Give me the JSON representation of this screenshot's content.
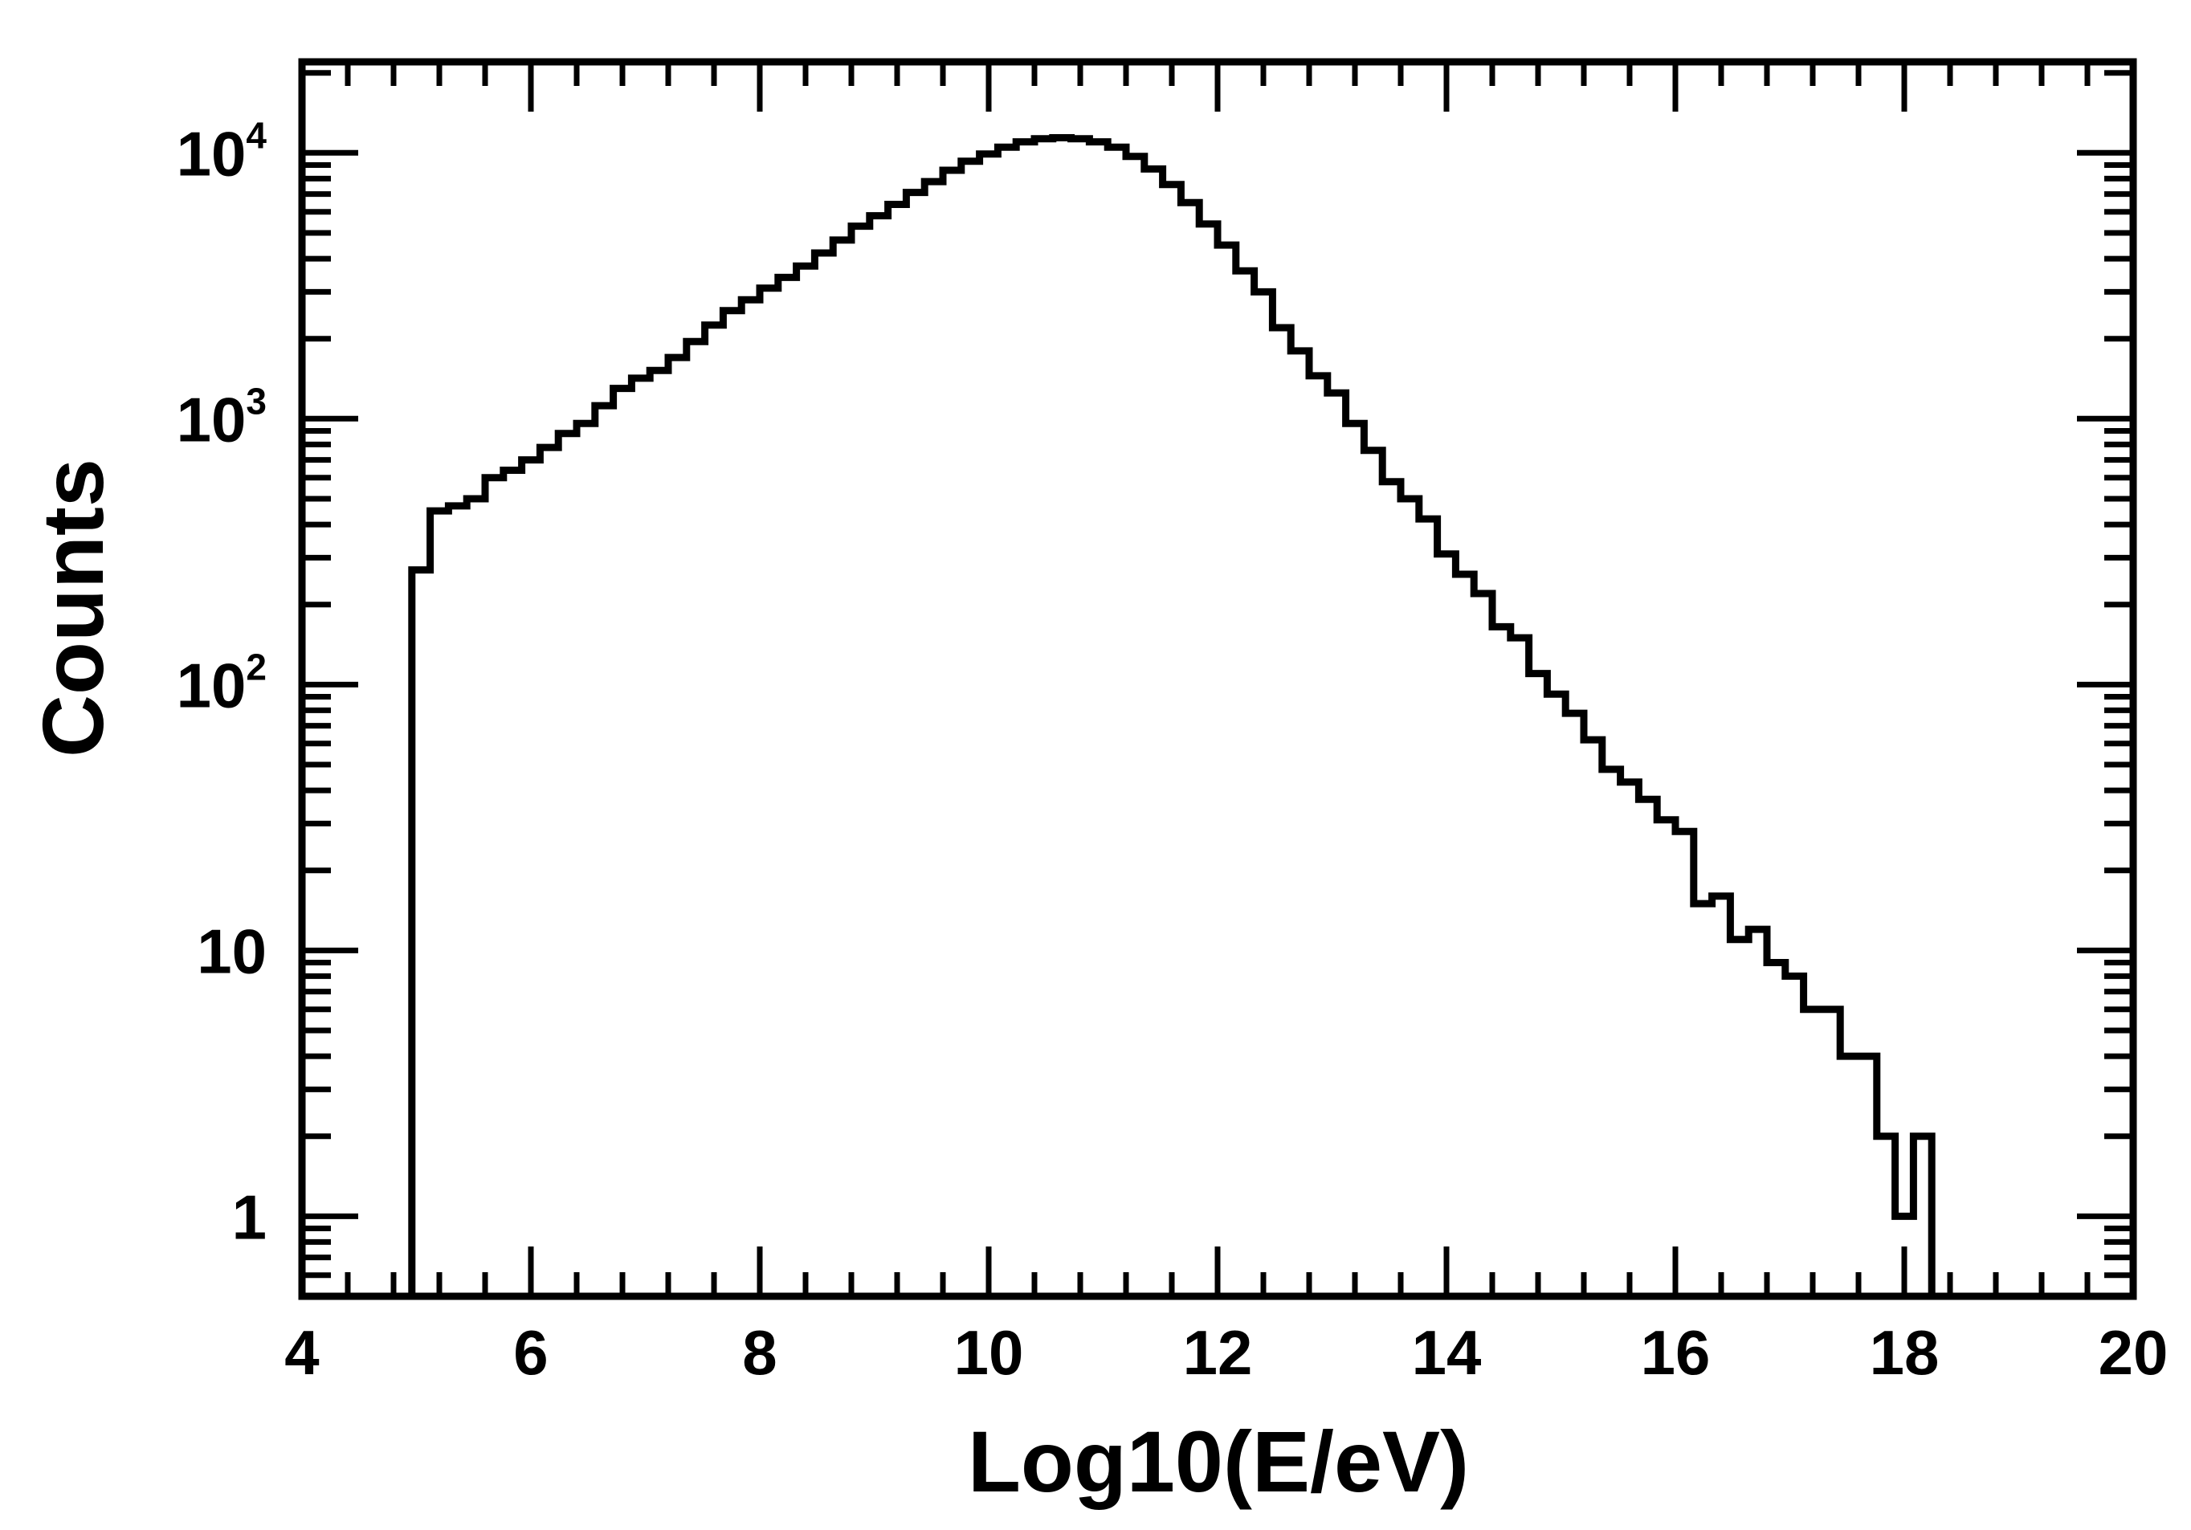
{
  "chart_data": {
    "type": "histogram",
    "xlabel": "Log10(E/eV)",
    "ylabel": "Counts",
    "xlim": [
      4,
      20
    ],
    "ylim": [
      0.5,
      22000
    ],
    "yscale": "log",
    "x_ticks": [
      "4",
      "6",
      "8",
      "10",
      "12",
      "14",
      "16",
      "18",
      "20"
    ],
    "y_ticks": [
      {
        "value": 1,
        "base": "1",
        "exp": ""
      },
      {
        "value": 10,
        "base": "10",
        "exp": ""
      },
      {
        "value": 100,
        "base": "10",
        "exp": "2"
      },
      {
        "value": 1000,
        "base": "10",
        "exp": "3"
      },
      {
        "value": 10000,
        "base": "10",
        "exp": "4"
      }
    ],
    "grid": false,
    "line_color": "#000000",
    "bin_width": 0.16,
    "bin_start": 4.96,
    "values": [
      270,
      450,
      470,
      500,
      600,
      640,
      700,
      780,
      880,
      960,
      1120,
      1300,
      1420,
      1520,
      1700,
      1950,
      2250,
      2550,
      2800,
      3100,
      3400,
      3750,
      4200,
      4700,
      5300,
      5800,
      6400,
      7100,
      7800,
      8600,
      9300,
      9900,
      10500,
      11000,
      11300,
      11400,
      11300,
      11000,
      10500,
      9700,
      8700,
      7600,
      6500,
      5400,
      4500,
      3600,
      3000,
      2200,
      1800,
      1450,
      1250,
      960,
      760,
      580,
      500,
      420,
      310,
      260,
      220,
      165,
      150,
      110,
      92,
      78,
      62,
      48,
      43,
      37,
      31,
      28,
      15,
      16,
      11,
      12,
      9,
      8,
      6,
      6,
      4,
      4,
      2,
      1,
      2
    ]
  }
}
